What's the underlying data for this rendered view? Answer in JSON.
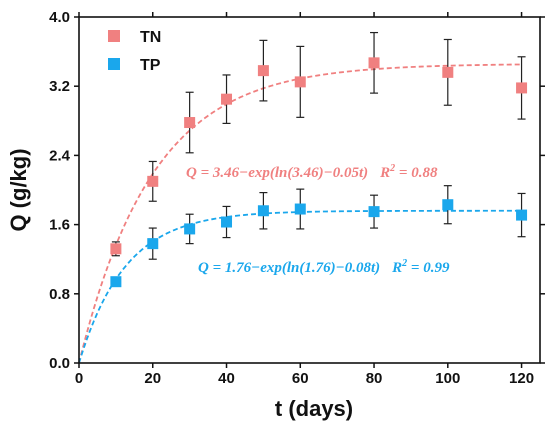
{
  "chart_data": {
    "type": "scatter",
    "xlabel": "t (days)",
    "ylabel": "Q (g/kg)",
    "xlim": [
      0,
      125
    ],
    "ylim": [
      0,
      4.0
    ],
    "xticks": [
      0,
      20,
      40,
      60,
      80,
      100,
      120
    ],
    "yticks": [
      0.0,
      0.8,
      1.6,
      2.4,
      3.2,
      4.0
    ],
    "xtick_labels": [
      "0",
      "20",
      "40",
      "60",
      "80",
      "100",
      "120"
    ],
    "ytick_labels": [
      "0.0",
      "0.8",
      "1.6",
      "2.4",
      "3.2",
      "4.0"
    ],
    "legend_position": "top-left",
    "grid": false,
    "series": [
      {
        "name": "TN",
        "color": "#f08080",
        "marker": "square",
        "x": [
          10,
          20,
          30,
          40,
          50,
          60,
          80,
          100,
          120
        ],
        "y": [
          1.32,
          2.1,
          2.78,
          3.05,
          3.38,
          3.25,
          3.47,
          3.36,
          3.18
        ],
        "error": [
          0.08,
          0.23,
          0.35,
          0.28,
          0.35,
          0.41,
          0.35,
          0.38,
          0.36
        ],
        "fit": {
          "a": 3.46,
          "k": 0.05
        },
        "equation": "Q = 3.46−exp(ln(3.46)−0.05t)",
        "r2_label": "R",
        "r2_sup": "2",
        "r2_value": " = 0.88"
      },
      {
        "name": "TP",
        "color": "#1aa7ec",
        "marker": "square",
        "x": [
          10,
          20,
          30,
          40,
          50,
          60,
          80,
          100,
          120
        ],
        "y": [
          0.94,
          1.38,
          1.55,
          1.63,
          1.76,
          1.78,
          1.75,
          1.83,
          1.71
        ],
        "error": [
          0.05,
          0.18,
          0.17,
          0.18,
          0.21,
          0.23,
          0.19,
          0.22,
          0.25
        ],
        "fit": {
          "a": 1.76,
          "k": 0.08
        },
        "equation": "Q = 1.76−exp(ln(1.76)−0.08t)",
        "r2_label": "R",
        "r2_sup": "2",
        "r2_value": " = 0.99"
      }
    ]
  }
}
